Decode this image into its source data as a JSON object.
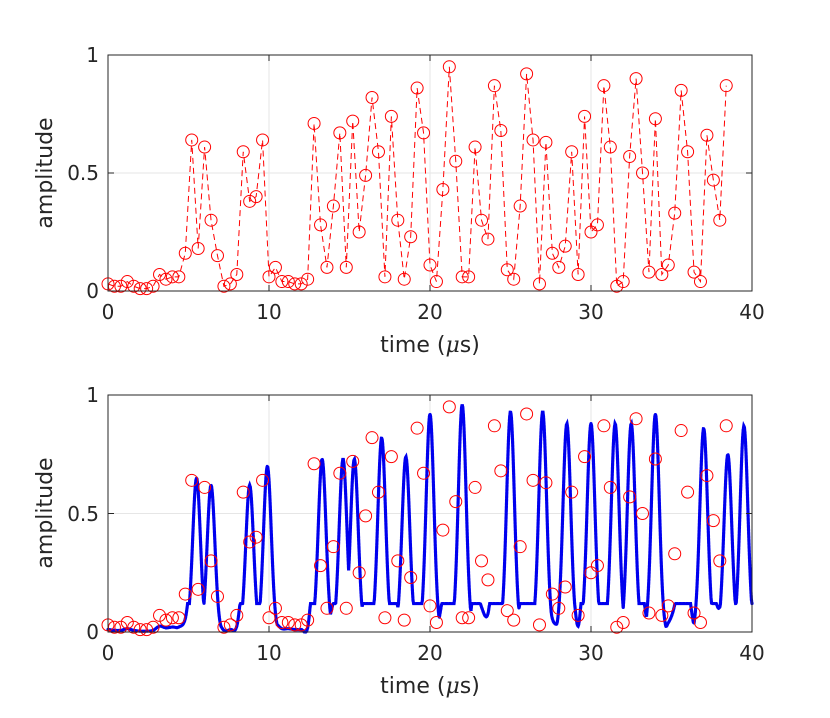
{
  "chart_data": [
    {
      "type": "line",
      "xlabel_main": "time (",
      "xlabel_symbol": "μ",
      "xlabel_rest": "s)",
      "ylabel": "amplitude",
      "xlim": [
        0,
        40
      ],
      "ylim": [
        0,
        1
      ],
      "x_ticks": [
        "0",
        "10",
        "20",
        "30",
        "40"
      ],
      "y_ticks": [
        "0",
        "0.5",
        "1"
      ],
      "grid": true,
      "series_style": "red dashed line with open circle markers",
      "color": "#ff0000",
      "samples_x_step": 0.4,
      "samples": [
        0.03,
        0.02,
        0.02,
        0.04,
        0.02,
        0.01,
        0.01,
        0.02,
        0.07,
        0.05,
        0.06,
        0.06,
        0.16,
        0.64,
        0.18,
        0.61,
        0.3,
        0.15,
        0.02,
        0.03,
        0.07,
        0.59,
        0.38,
        0.4,
        0.64,
        0.06,
        0.1,
        0.04,
        0.04,
        0.03,
        0.03,
        0.05,
        0.71,
        0.28,
        0.1,
        0.36,
        0.67,
        0.1,
        0.72,
        0.25,
        0.49,
        0.82,
        0.59,
        0.06,
        0.74,
        0.3,
        0.05,
        0.23,
        0.86,
        0.67,
        0.11,
        0.04,
        0.43,
        0.95,
        0.55,
        0.06,
        0.06,
        0.61,
        0.3,
        0.22,
        0.87,
        0.68,
        0.09,
        0.05,
        0.36,
        0.92,
        0.64,
        0.03,
        0.63,
        0.16,
        0.1,
        0.19,
        0.59,
        0.07,
        0.74,
        0.25,
        0.28,
        0.87,
        0.61,
        0.02,
        0.04,
        0.57,
        0.9,
        0.5,
        0.08,
        0.73,
        0.07,
        0.11,
        0.33,
        0.85,
        0.59,
        0.08,
        0.04,
        0.66,
        0.47,
        0.3,
        0.87
      ]
    },
    {
      "type": "line",
      "xlabel_main": "time (",
      "xlabel_symbol": "μ",
      "xlabel_rest": "s)",
      "ylabel": "amplitude",
      "xlim": [
        0,
        40
      ],
      "ylim": [
        0,
        1
      ],
      "x_ticks": [
        "0",
        "10",
        "20",
        "30",
        "40"
      ],
      "y_ticks": [
        "0",
        "0.5",
        "1"
      ],
      "grid": true,
      "series": [
        {
          "style": "blue dense dotted continuous signal",
          "color": "#0000ee"
        },
        {
          "style": "red open circles (same samples as top panel)",
          "color": "#ff0000"
        }
      ],
      "continuous_peaks": [
        [
          5.5,
          0.65
        ],
        [
          6.4,
          0.62
        ],
        [
          8.8,
          0.62
        ],
        [
          9.9,
          0.7
        ],
        [
          13.3,
          0.73
        ],
        [
          14.6,
          0.73
        ],
        [
          15.3,
          0.73
        ],
        [
          17.0,
          0.82
        ],
        [
          18.5,
          0.74
        ],
        [
          20.0,
          0.92
        ],
        [
          22.0,
          0.96
        ],
        [
          25.0,
          0.93
        ],
        [
          27.0,
          0.93
        ],
        [
          28.5,
          0.88
        ],
        [
          30.0,
          0.88
        ],
        [
          31.5,
          0.88
        ],
        [
          32.5,
          0.88
        ],
        [
          34.0,
          0.92
        ],
        [
          37.0,
          0.86
        ],
        [
          38.5,
          0.75
        ],
        [
          39.5,
          0.87
        ]
      ]
    }
  ]
}
